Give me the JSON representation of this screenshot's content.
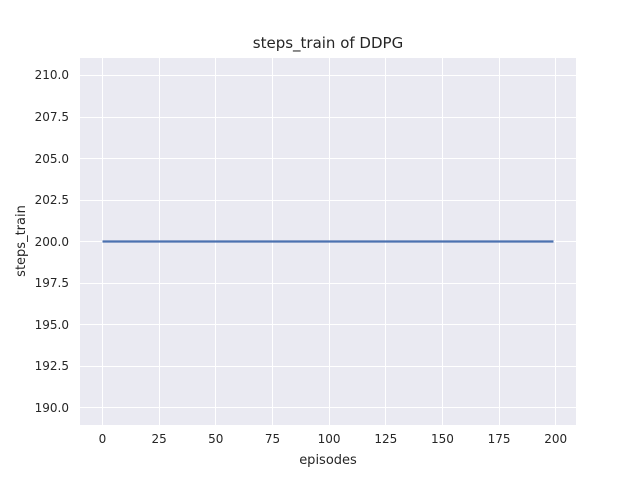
{
  "figure": {
    "background": "#ffffff"
  },
  "chart_data": {
    "type": "line",
    "title": "steps_train of DDPG",
    "xlabel": "episodes",
    "ylabel": "steps_train",
    "x_ticks": [
      0,
      25,
      50,
      75,
      100,
      125,
      150,
      175,
      200
    ],
    "x_tick_labels": [
      "0",
      "25",
      "50",
      "75",
      "100",
      "125",
      "150",
      "175",
      "200"
    ],
    "y_ticks": [
      190.0,
      192.5,
      195.0,
      197.5,
      200.0,
      202.5,
      205.0,
      207.5,
      210.0
    ],
    "y_tick_labels": [
      "190.0",
      "192.5",
      "195.0",
      "197.5",
      "200.0",
      "202.5",
      "205.0",
      "207.5",
      "210.0"
    ],
    "xlim": [
      -9.95,
      208.95
    ],
    "ylim": [
      188.95,
      211.05
    ],
    "grid": true,
    "legend_visible": false,
    "colors": {
      "plot_background": "#eaeaf2",
      "gridline": "#ffffff",
      "text": "#262626",
      "series_line": "#4c72b0"
    },
    "series": [
      {
        "name": "steps_train",
        "color": "#4c72b0",
        "x": [
          0,
          199
        ],
        "y": [
          200,
          200
        ]
      }
    ]
  }
}
